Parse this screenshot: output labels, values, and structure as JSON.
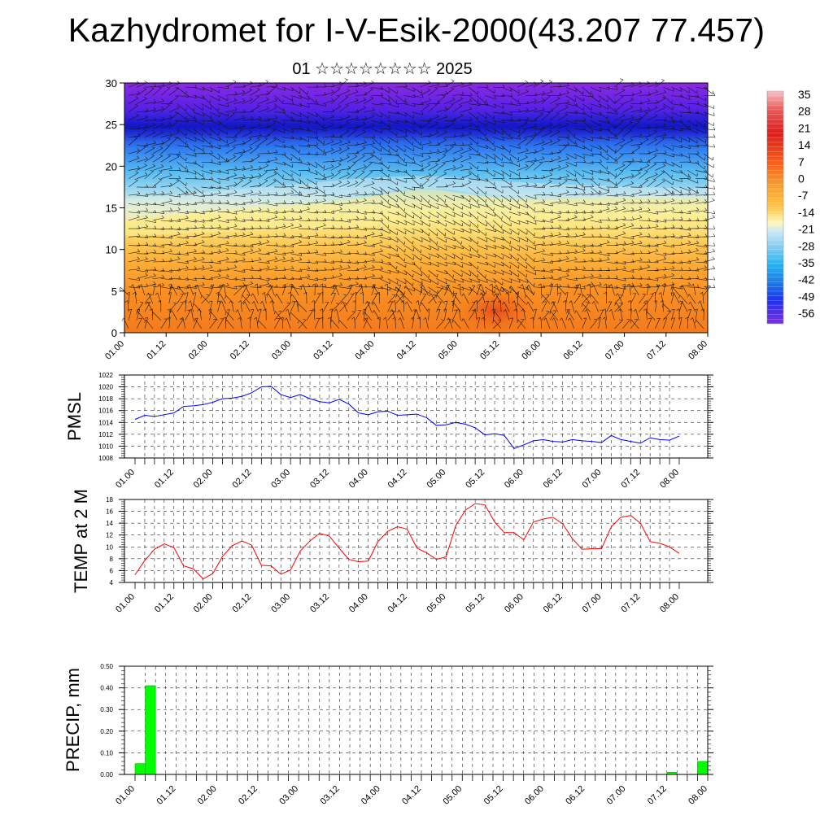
{
  "header": {
    "title": "Kazhydromet for I-V-Esik-2000(43.207 77.457)",
    "subtitle": "01 ☆☆☆☆☆☆☆☆ 2025"
  },
  "time_labels": [
    "01.00",
    "01.12",
    "02.00",
    "02.12",
    "03.00",
    "03.12",
    "04.00",
    "04.12",
    "05.00",
    "05.12",
    "06.00",
    "06.12",
    "07.00",
    "07.12",
    "08.00"
  ],
  "chart_data": [
    {
      "type": "heatmap",
      "title": "",
      "xlabel": "",
      "ylabel": "",
      "x": [
        "01.00",
        "01.12",
        "02.00",
        "02.12",
        "03.00",
        "03.12",
        "04.00",
        "04.12",
        "05.00",
        "05.12",
        "06.00",
        "06.12",
        "07.00",
        "07.12",
        "08.00"
      ],
      "ylim": [
        0,
        30
      ],
      "yticks": [
        0,
        5,
        10,
        15,
        20,
        25,
        30
      ],
      "colorbar_labels": [
        "35",
        "28",
        "21",
        "14",
        "7",
        "0",
        "-7",
        "-14",
        "-21",
        "-28",
        "-35",
        "-42",
        "-49",
        "-56"
      ],
      "colorbar_range": [
        -63,
        42
      ],
      "overlay": "wind barbs",
      "notes": "Temperature by level; warm (orange/red) near 0-8, yellow around 10-15, cold (blue/purple) 18-30"
    },
    {
      "type": "line",
      "ylabel": "PMSL",
      "ylim": [
        1008,
        1022
      ],
      "yticks": [
        1008,
        1010,
        1012,
        1014,
        1016,
        1018,
        1020,
        1022
      ],
      "color": "#0000ff",
      "x": [
        "01.00",
        "01.03",
        "01.06",
        "01.09",
        "01.12",
        "01.15",
        "01.18",
        "01.21",
        "02.00",
        "02.03",
        "02.06",
        "02.09",
        "02.12",
        "02.15",
        "02.18",
        "02.21",
        "03.00",
        "03.03",
        "03.06",
        "03.09",
        "03.12",
        "03.15",
        "03.18",
        "03.21",
        "04.00",
        "04.03",
        "04.06",
        "04.09",
        "04.12",
        "04.15",
        "04.18",
        "04.21",
        "05.00",
        "05.03",
        "05.06",
        "05.09",
        "05.12",
        "05.15",
        "05.18",
        "05.21",
        "06.00",
        "06.03",
        "06.06",
        "06.09",
        "06.12",
        "06.15",
        "06.18",
        "06.21",
        "07.00",
        "07.03",
        "07.06",
        "07.09",
        "07.12",
        "07.15",
        "07.18",
        "07.21",
        "08.00"
      ],
      "values": [
        1014.5,
        1015.2,
        1015.0,
        1015.3,
        1015.6,
        1016.7,
        1016.8,
        1017.0,
        1017.4,
        1018.0,
        1018.1,
        1018.4,
        1019.0,
        1020.0,
        1020.1,
        1018.7,
        1018.2,
        1018.7,
        1018.0,
        1017.5,
        1017.3,
        1017.9,
        1017.1,
        1015.6,
        1015.3,
        1015.8,
        1015.9,
        1015.2,
        1015.3,
        1015.4,
        1014.8,
        1013.5,
        1013.6,
        1014.0,
        1013.7,
        1013.1,
        1011.9,
        1012.1,
        1011.8,
        1009.6,
        1010.2,
        1010.9,
        1011.1,
        1010.8,
        1010.7,
        1011.1,
        1010.9,
        1010.8,
        1010.6,
        1011.8,
        1011.1,
        1010.8,
        1010.5,
        1011.4,
        1011.1,
        1011.0,
        1011.7
      ]
    },
    {
      "type": "line",
      "ylabel": "TEMP at 2 M",
      "ylim": [
        4,
        18
      ],
      "yticks": [
        4,
        6,
        8,
        10,
        12,
        14,
        16,
        18
      ],
      "color": "#ff0000",
      "x": [
        "01.00",
        "01.03",
        "01.06",
        "01.09",
        "01.12",
        "01.15",
        "01.18",
        "01.21",
        "02.00",
        "02.03",
        "02.06",
        "02.09",
        "02.12",
        "02.15",
        "02.18",
        "02.21",
        "03.00",
        "03.03",
        "03.06",
        "03.09",
        "03.12",
        "03.15",
        "03.18",
        "03.21",
        "04.00",
        "04.03",
        "04.06",
        "04.09",
        "04.12",
        "04.15",
        "04.18",
        "04.21",
        "05.00",
        "05.03",
        "05.06",
        "05.09",
        "05.12",
        "05.15",
        "05.18",
        "05.21",
        "06.00",
        "06.03",
        "06.06",
        "06.09",
        "06.12",
        "06.15",
        "06.18",
        "06.21",
        "07.00",
        "07.03",
        "07.06",
        "07.09",
        "07.12",
        "07.15",
        "07.18",
        "07.21",
        "08.00"
      ],
      "values": [
        5.3,
        7.7,
        9.6,
        10.5,
        9.9,
        6.8,
        6.3,
        4.6,
        5.5,
        8.4,
        10.2,
        11.0,
        10.3,
        6.9,
        6.8,
        5.4,
        6.1,
        9.3,
        11.0,
        12.3,
        11.8,
        9.8,
        7.9,
        7.5,
        7.6,
        10.9,
        12.6,
        13.4,
        13.0,
        9.8,
        9.0,
        7.9,
        8.3,
        13.6,
        16.2,
        17.3,
        17.1,
        14.2,
        12.4,
        12.4,
        11.2,
        14.2,
        14.7,
        15.0,
        13.9,
        11.4,
        9.6,
        9.7,
        9.7,
        13.4,
        15.0,
        15.3,
        14.0,
        10.9,
        10.6,
        10.0,
        8.9
      ]
    },
    {
      "type": "bar",
      "ylabel": "PRECIP, mm",
      "ylim": [
        0,
        0.5
      ],
      "yticks": [
        "0.00",
        "0.10",
        "0.20",
        "0.30",
        "0.40",
        "0.50"
      ],
      "color": "#00ff00",
      "x": [
        "01.03",
        "01.06",
        "07.15",
        "08.00"
      ],
      "values": [
        0.05,
        0.41,
        0.01,
        0.06
      ]
    }
  ]
}
